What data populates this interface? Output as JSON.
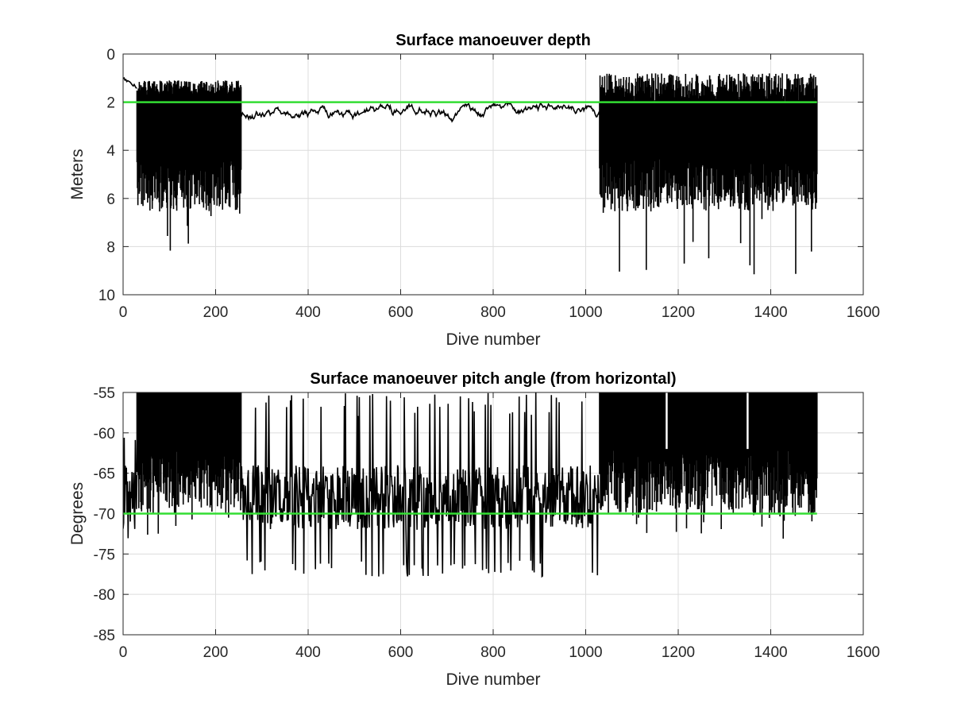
{
  "chart_data": [
    {
      "type": "line",
      "title": "Surface manoeuver depth",
      "xlabel": "Dive number",
      "ylabel": "Meters",
      "xlim": [
        0,
        1600
      ],
      "ylim": [
        0,
        10
      ],
      "y_reversed": true,
      "grid": true,
      "xticks": [
        0,
        200,
        400,
        600,
        800,
        1000,
        1200,
        1400,
        1600
      ],
      "yticks": [
        0,
        2,
        4,
        6,
        8,
        10
      ],
      "xtick_labels": [
        "0",
        "200",
        "400",
        "600",
        "800",
        "1000",
        "1200",
        "1400",
        "1600"
      ],
      "ytick_labels": [
        "0",
        "2",
        "4",
        "6",
        "8",
        "10"
      ],
      "colors": {
        "data": "#000000",
        "reference": "#33dd33"
      },
      "reference_line": {
        "y": 2,
        "x_range": [
          0,
          1500
        ]
      },
      "segments": [
        {
          "regime": "noisy",
          "x_range": [
            30,
            255
          ],
          "upper_range": [
            1.1,
            1.7
          ],
          "lower_range": [
            3.0,
            8.5
          ],
          "typical_lower": 5.0
        },
        {
          "regime": "stable",
          "x_range": [
            255,
            1030
          ],
          "level_range": [
            2.0,
            3.1
          ],
          "typical_level": 2.5
        },
        {
          "regime": "noisy",
          "x_range": [
            1030,
            1500
          ],
          "upper_range": [
            0.8,
            2.1
          ],
          "lower_range": [
            2.8,
            9.2
          ],
          "typical_lower": 5.0
        }
      ],
      "series": [
        {
          "x": [
            0,
            10,
            20,
            30,
            40,
            50,
            60,
            70,
            80,
            100,
            120,
            140,
            160,
            180,
            200,
            220,
            240,
            255,
            270,
            300,
            330,
            350,
            380,
            400,
            430,
            450,
            470,
            500,
            530,
            560,
            600,
            630,
            660,
            700,
            730,
            760,
            800,
            830,
            860,
            900,
            930,
            960,
            1000,
            1020,
            1040,
            1060,
            1080,
            1100,
            1130,
            1160,
            1180,
            1200,
            1220,
            1250,
            1280,
            1300,
            1320,
            1350,
            1380,
            1400,
            1420,
            1450,
            1470,
            1490,
            1500
          ],
          "y": [
            1.0,
            1.2,
            1.3,
            5.5,
            6.0,
            7.0,
            5.5,
            7.1,
            6.2,
            5.8,
            6.5,
            6.3,
            6.9,
            8.5,
            7.8,
            6.2,
            5.5,
            6.7,
            2.2,
            2.6,
            2.8,
            2.6,
            2.9,
            2.7,
            2.4,
            2.3,
            2.2,
            2.4,
            2.6,
            2.5,
            2.6,
            2.5,
            2.9,
            2.5,
            2.4,
            2.6,
            2.7,
            2.4,
            2.6,
            2.5,
            2.4,
            2.6,
            2.5,
            2.6,
            5.8,
            6.0,
            5.5,
            5.0,
            7.2,
            6.0,
            5.5,
            9.2,
            6.5,
            6.8,
            5.5,
            6.0,
            5.8,
            6.5,
            5.8,
            6.3,
            8.8,
            6.0,
            5.0,
            7.9,
            6.4
          ]
        }
      ]
    },
    {
      "type": "line",
      "title": "Surface manoeuver pitch angle (from horizontal)",
      "xlabel": "Dive number",
      "ylabel": "Degrees",
      "xlim": [
        0,
        1600
      ],
      "ylim": [
        -85,
        -55
      ],
      "grid": true,
      "xticks": [
        0,
        200,
        400,
        600,
        800,
        1000,
        1200,
        1400,
        1600
      ],
      "yticks": [
        -55,
        -60,
        -65,
        -70,
        -75,
        -80,
        -85
      ],
      "xtick_labels": [
        "0",
        "200",
        "400",
        "600",
        "800",
        "1000",
        "1200",
        "1400",
        "1600"
      ],
      "ytick_labels": [
        "-55",
        "-60",
        "-65",
        "-70",
        "-75",
        "-80",
        "-85"
      ],
      "colors": {
        "data": "#000000",
        "reference": "#33dd33"
      },
      "reference_line": {
        "y": -70,
        "x_range": [
          0,
          1500
        ]
      },
      "segments": [
        {
          "regime": "noisy",
          "x_range": [
            0,
            30
          ],
          "upper_range": [
            -64,
            -59
          ],
          "lower_range": [
            -75,
            -65
          ]
        },
        {
          "regime": "noisy",
          "x_range": [
            30,
            255
          ],
          "upper_range": [
            -55,
            -55
          ],
          "lower_range": [
            -74,
            -60
          ]
        },
        {
          "regime": "noisy",
          "x_range": [
            255,
            1030
          ],
          "upper_range": [
            -62,
            -55
          ],
          "lower_range": [
            -77.8,
            -67
          ]
        },
        {
          "regime": "noisy",
          "x_range": [
            1030,
            1500
          ],
          "upper_range": [
            -55,
            -55
          ],
          "lower_range": [
            -75,
            -65
          ]
        }
      ],
      "series": [
        {
          "x": [
            0,
            5,
            10,
            20,
            30,
            50,
            80,
            100,
            120,
            150,
            180,
            200,
            230,
            255,
            300,
            350,
            400,
            450,
            480,
            500,
            530,
            560,
            570,
            600,
            650,
            700,
            750,
            800,
            850,
            900,
            950,
            1000,
            1030,
            1060,
            1100,
            1150,
            1200,
            1250,
            1300,
            1350,
            1400,
            1450,
            1500
          ],
          "y": [
            -63,
            -65,
            -60,
            -66,
            -72,
            -68,
            -71,
            -69,
            -73.5,
            -72,
            -71,
            -70,
            -74,
            -72,
            -71,
            -72,
            -73,
            -71,
            -75,
            -70,
            -72,
            -77.8,
            -71,
            -72,
            -71,
            -74,
            -70,
            -70,
            -73,
            -70,
            -72,
            -73,
            -74,
            -74,
            -71,
            -72,
            -74.5,
            -72,
            -71,
            -73.8,
            -72,
            -73,
            -70
          ]
        }
      ]
    }
  ]
}
